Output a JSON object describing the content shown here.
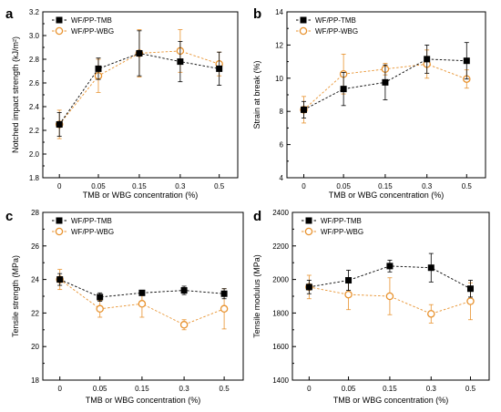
{
  "figure": {
    "legend": {
      "tmb": "WF/PP-TMB",
      "wbg": "WF/PP-WBG"
    },
    "colors": {
      "tmb": "#000000",
      "wbg": "#E8922E",
      "frame": "#000000",
      "axis_text": "#000000"
    }
  },
  "chart_data": [
    {
      "panel_letter": "a",
      "type": "line",
      "categories": [
        "0",
        "0.05",
        "0.15",
        "0.3",
        "0.5"
      ],
      "xlabel": "TMB or WBG concentration (%)",
      "ylabel": "Notched impact strength (kJ/m²)",
      "ylim": [
        1.8,
        3.2
      ],
      "yticks": [
        "1.8",
        "2.0",
        "2.2",
        "2.4",
        "2.6",
        "2.8",
        "3.0",
        "3.2"
      ],
      "legend_position": "top-left",
      "series": [
        {
          "name": "WF/PP-TMB",
          "marker": "filled-square",
          "values": [
            2.25,
            2.72,
            2.85,
            2.78,
            2.72
          ],
          "errors": [
            0.1,
            0.09,
            0.19,
            0.17,
            0.14
          ]
        },
        {
          "name": "WF/PP-WBG",
          "marker": "open-circle",
          "values": [
            2.25,
            2.66,
            2.85,
            2.87,
            2.76
          ],
          "errors": [
            0.12,
            0.14,
            0.2,
            0.18,
            0.1
          ]
        }
      ]
    },
    {
      "panel_letter": "b",
      "type": "line",
      "categories": [
        "0",
        "0.05",
        "0.15",
        "0.3",
        "0.5"
      ],
      "xlabel": "TMB or WBG concentration (%)",
      "ylabel": "Strain at break (%)",
      "ylim": [
        4,
        14
      ],
      "yticks": [
        "4",
        "6",
        "8",
        "10",
        "12",
        "14"
      ],
      "legend_position": "top-left",
      "series": [
        {
          "name": "WF/PP-TMB",
          "marker": "filled-square",
          "values": [
            8.1,
            9.35,
            9.75,
            11.15,
            11.05
          ],
          "errors": [
            0.5,
            1.0,
            1.05,
            0.85,
            1.1
          ]
        },
        {
          "name": "WF/PP-WBG",
          "marker": "open-circle",
          "values": [
            8.1,
            10.25,
            10.55,
            10.85,
            9.95
          ],
          "errors": [
            0.8,
            1.2,
            0.35,
            0.85,
            0.55
          ]
        }
      ]
    },
    {
      "panel_letter": "c",
      "type": "line",
      "categories": [
        "0",
        "0.05",
        "0.15",
        "0.3",
        "0.5"
      ],
      "xlabel": "TMB or WBG concentration (%)",
      "ylabel": "Tensile strength (MPa)",
      "ylim": [
        18,
        28
      ],
      "yticks": [
        "18",
        "20",
        "22",
        "24",
        "26",
        "28"
      ],
      "legend_position": "top-left",
      "series": [
        {
          "name": "WF/PP-TMB",
          "marker": "filled-square",
          "values": [
            24.0,
            22.95,
            23.2,
            23.35,
            23.15
          ],
          "errors": [
            0.35,
            0.25,
            0.15,
            0.25,
            0.3
          ]
        },
        {
          "name": "WF/PP-WBG",
          "marker": "open-circle",
          "values": [
            24.0,
            22.25,
            22.55,
            21.3,
            22.25
          ],
          "errors": [
            0.6,
            0.5,
            0.8,
            0.3,
            1.2
          ]
        }
      ]
    },
    {
      "panel_letter": "d",
      "type": "line",
      "categories": [
        "0",
        "0.05",
        "0.15",
        "0.3",
        "0.5"
      ],
      "xlabel": "TMB or WBG concentration (%)",
      "ylabel": "Tensile modulus (MPa)",
      "ylim": [
        1400,
        2400
      ],
      "yticks": [
        "1400",
        "1600",
        "1800",
        "2000",
        "2200",
        "2400"
      ],
      "legend_position": "top-left",
      "series": [
        {
          "name": "WF/PP-TMB",
          "marker": "filled-square",
          "values": [
            1955,
            1995,
            2080,
            2070,
            1945
          ],
          "errors": [
            40,
            60,
            35,
            85,
            50
          ]
        },
        {
          "name": "WF/PP-WBG",
          "marker": "open-circle",
          "values": [
            1955,
            1910,
            1900,
            1795,
            1870
          ],
          "errors": [
            70,
            90,
            110,
            55,
            110
          ]
        }
      ]
    }
  ]
}
